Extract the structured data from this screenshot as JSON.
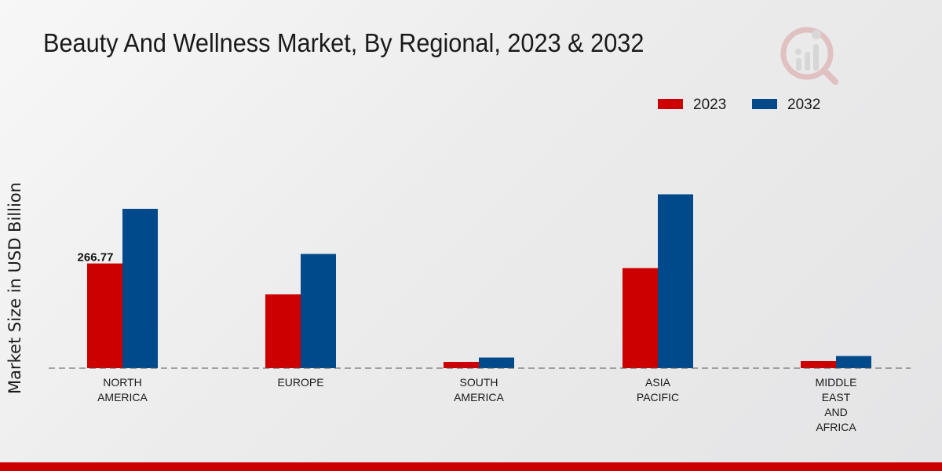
{
  "chart_data": {
    "type": "bar",
    "title": "Beauty And Wellness Market, By Regional, 2023 & 2032",
    "xlabel": "",
    "ylabel": "Market Size in USD Billion",
    "categories": [
      [
        "NORTH",
        "AMERICA"
      ],
      [
        "EUROPE"
      ],
      [
        "SOUTH",
        "AMERICA"
      ],
      [
        "ASIA",
        "PACIFIC"
      ],
      [
        "MIDDLE",
        "EAST",
        "AND",
        "AFRICA"
      ]
    ],
    "series": [
      {
        "name": "2023",
        "color": "#cc0000",
        "values": [
          266.77,
          188.0,
          16.0,
          255.0,
          18.0
        ]
      },
      {
        "name": "2032",
        "color": "#004a8c",
        "values": [
          406.0,
          291.0,
          27.0,
          443.0,
          31.0
        ]
      }
    ],
    "data_labels": [
      {
        "series": 0,
        "index": 0,
        "text": "266.77"
      }
    ],
    "ylim": [
      0,
      520
    ],
    "legend_position": "top-right",
    "grid": false
  },
  "colors": {
    "bottom_bar": "#cc0000",
    "baseline": "#555555"
  },
  "logo": {
    "icon": "brand-logo-icon"
  }
}
